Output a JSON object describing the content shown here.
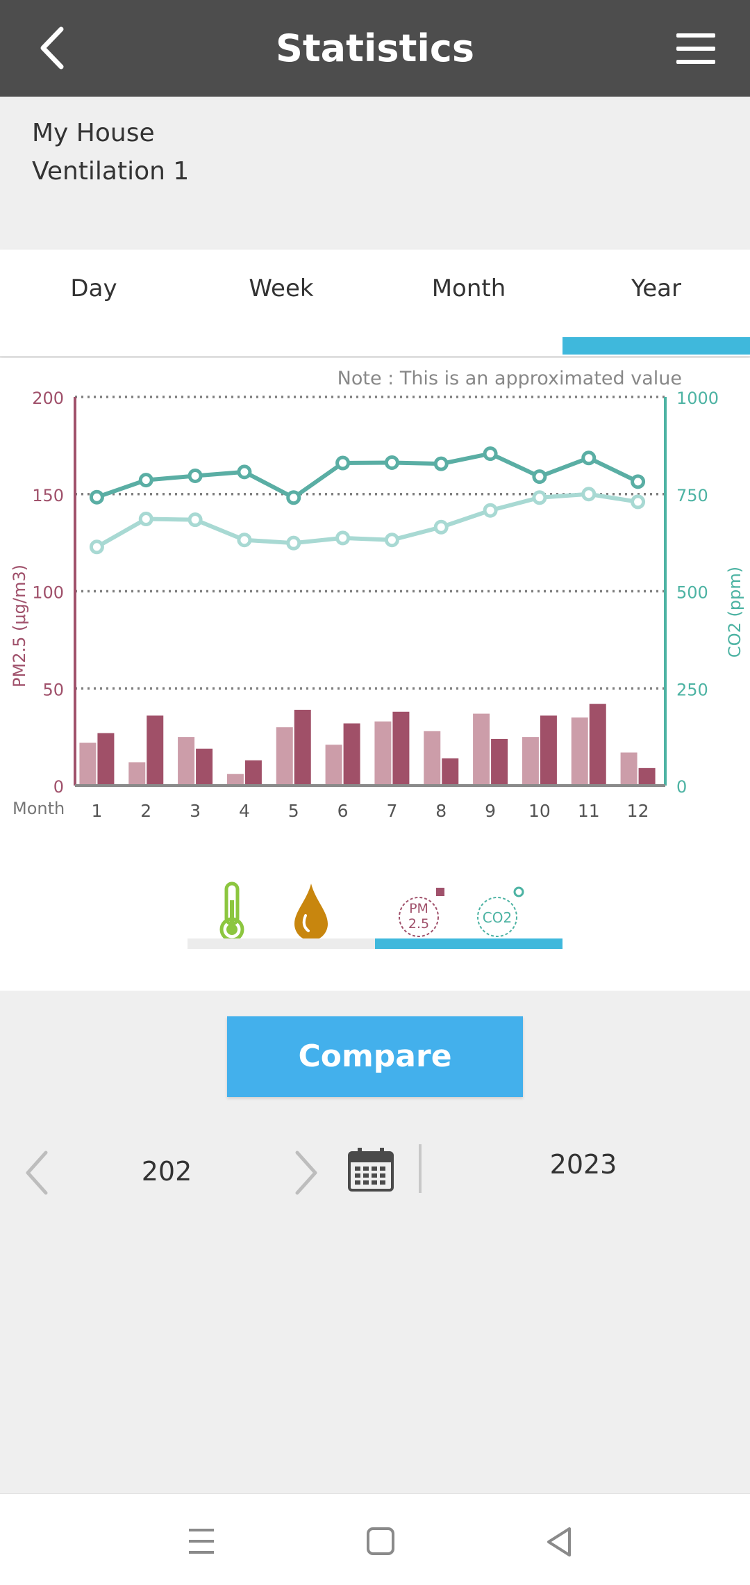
{
  "header": {
    "title": "Statistics",
    "back_icon": "chevron-left-icon",
    "menu_icon": "hamburger-icon"
  },
  "device": {
    "location": "My House",
    "name": "Ventilation 1"
  },
  "tabs": [
    {
      "label": "Day",
      "selected": false
    },
    {
      "label": "Week",
      "selected": false
    },
    {
      "label": "Month",
      "selected": false
    },
    {
      "label": "Year",
      "selected": true
    }
  ],
  "chart_note": "Note : This is an approximated value",
  "chart_data": {
    "type": "bar",
    "xlabel": "Month",
    "categories": [
      "1",
      "2",
      "3",
      "4",
      "5",
      "6",
      "7",
      "8",
      "9",
      "10",
      "11",
      "12"
    ],
    "y_left": {
      "label": "PM2.5 (μg/m3)",
      "ticks": [
        "0",
        "50",
        "100",
        "150",
        "200"
      ],
      "range": [
        0,
        200
      ],
      "color": "#a0516b"
    },
    "y_right": {
      "label": "CO2 (ppm)",
      "ticks": [
        "0",
        "250",
        "500",
        "750",
        "1000"
      ],
      "range": [
        0,
        1000
      ],
      "color": "#4db3a3"
    },
    "grid": "dotted",
    "series": [
      {
        "kind": "bar",
        "axis": "left",
        "color": "#cc9da9",
        "values": [
          22,
          12,
          25,
          6,
          30,
          21,
          33,
          28,
          37,
          25,
          35,
          17
        ]
      },
      {
        "kind": "bar",
        "axis": "left",
        "color": "#a05068",
        "values": [
          27,
          36,
          19,
          13,
          39,
          32,
          38,
          14,
          24,
          36,
          42,
          9
        ]
      },
      {
        "kind": "line",
        "axis": "right",
        "color": "#5aaea4",
        "values": [
          742,
          786,
          797,
          807,
          741,
          830,
          831,
          828,
          854,
          795,
          843,
          782
        ]
      },
      {
        "kind": "line",
        "axis": "right",
        "color": "#a8d9d3",
        "values": [
          614,
          686,
          684,
          632,
          624,
          637,
          632,
          665,
          708,
          741,
          750,
          730
        ]
      }
    ]
  },
  "sensors": {
    "items": [
      {
        "name": "temperature",
        "icon": "thermometer-icon",
        "color": "#8cc63f"
      },
      {
        "name": "humidity",
        "icon": "water-drop-icon",
        "color": "#c8860e"
      },
      {
        "name": "pm25",
        "icon": "pm25-icon",
        "color": "#a0516b",
        "label_top": "PM",
        "label_bottom": "2.5"
      },
      {
        "name": "co2",
        "icon": "co2-icon",
        "color": "#4db3a3",
        "label": "CO2"
      }
    ]
  },
  "compare_button": {
    "label": "Compare"
  },
  "years": {
    "left": "202",
    "right": "2023"
  },
  "navbar": {
    "recent_icon": "recents-icon",
    "home_icon": "home-icon",
    "back_icon": "back-triangle-icon"
  }
}
